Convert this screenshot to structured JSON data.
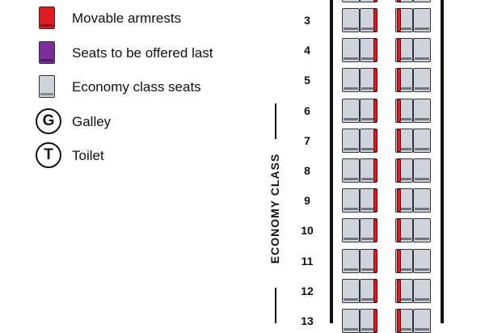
{
  "colors": {
    "movable_armrest": "#e11b22",
    "offered_last": "#7b2d9a",
    "economy_seat": "#cfd3dc"
  },
  "legend": [
    {
      "kind": "swatch",
      "color": "#e11b22",
      "label": "Movable armrests"
    },
    {
      "kind": "swatch",
      "color": "#7b2d9a",
      "label": "Seats to be offered last"
    },
    {
      "kind": "swatch",
      "color": "#cfd3dc",
      "label": "Economy class seats"
    },
    {
      "kind": "circle",
      "symbol": "G",
      "label": "Galley"
    },
    {
      "kind": "circle",
      "symbol": "T",
      "label": "Toilet"
    }
  ],
  "cabin": {
    "section_label": "ECONOMY CLASS",
    "rows": [
      "3",
      "4",
      "5",
      "6",
      "7",
      "8",
      "9",
      "10",
      "11",
      "12",
      "13"
    ],
    "armrest_color": "#e11b22"
  }
}
